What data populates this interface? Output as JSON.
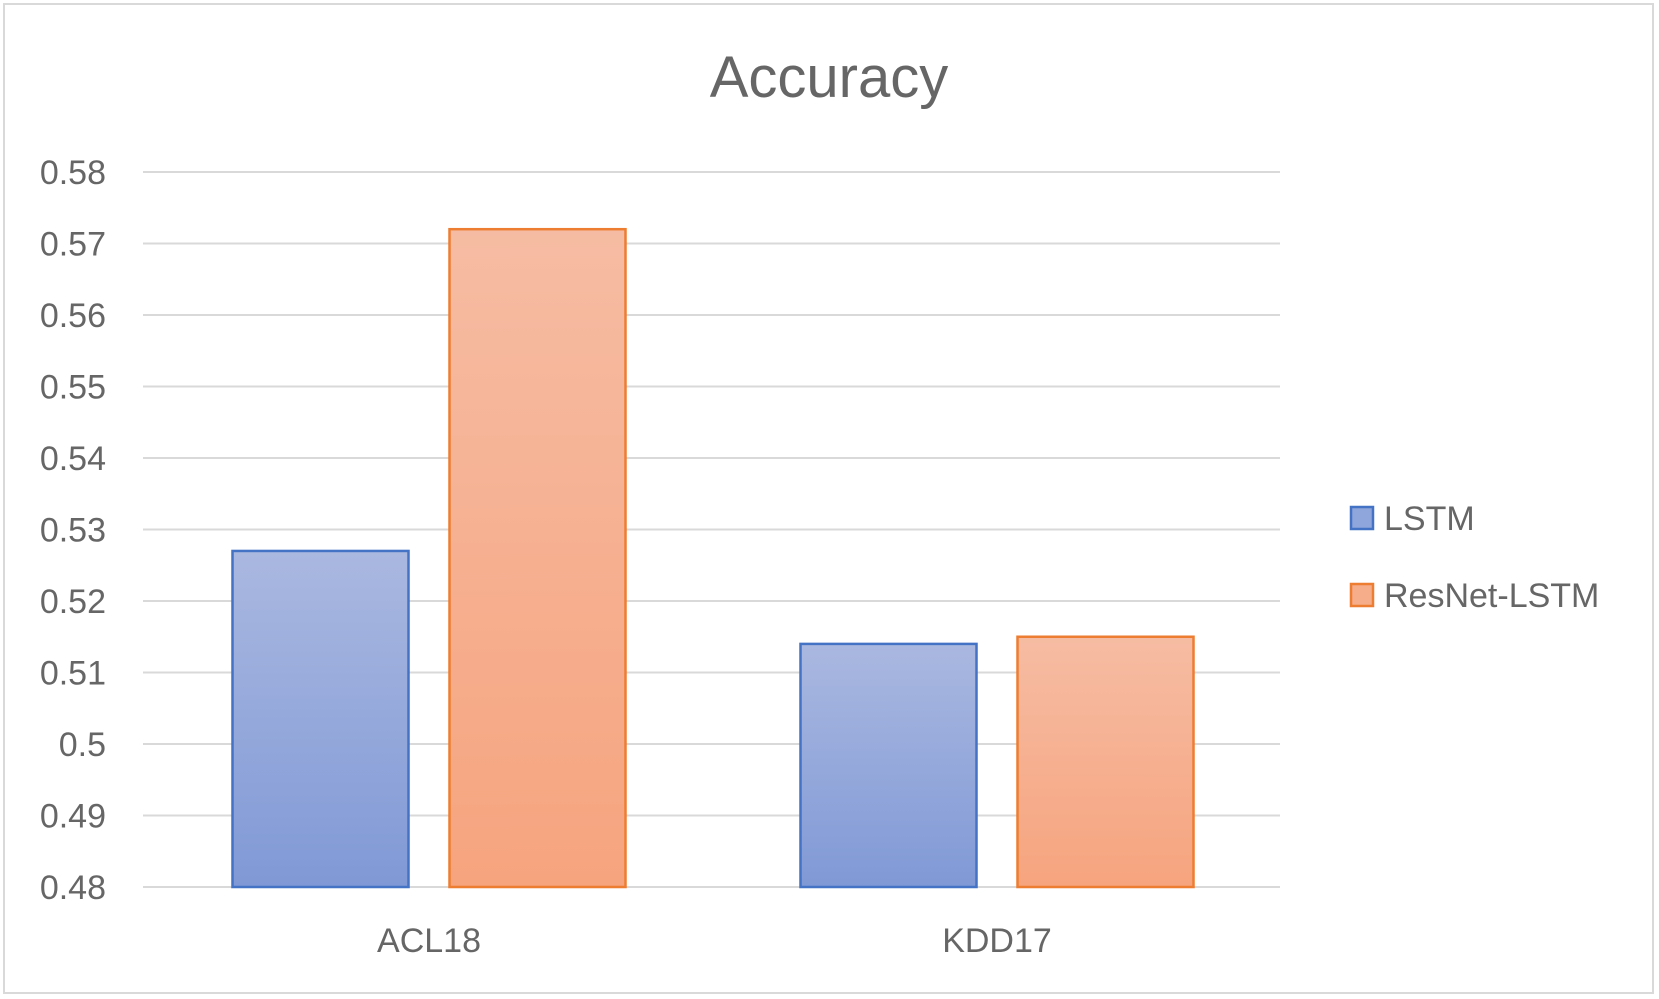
{
  "chart_data": {
    "type": "bar",
    "title": "Accuracy",
    "categories": [
      "ACL18",
      "KDD17"
    ],
    "series": [
      {
        "name": "LSTM",
        "values": [
          0.527,
          0.514
        ],
        "color": "#4472c4"
      },
      {
        "name": "ResNet-LSTM",
        "values": [
          0.572,
          0.515
        ],
        "color": "#ed7d31"
      }
    ],
    "ylim": [
      0.48,
      0.58
    ],
    "yticks": [
      "0.58",
      "0.57",
      "0.56",
      "0.55",
      "0.54",
      "0.53",
      "0.52",
      "0.51",
      "0.5",
      "0.49",
      "0.48"
    ],
    "grid": true,
    "legend": "right"
  }
}
